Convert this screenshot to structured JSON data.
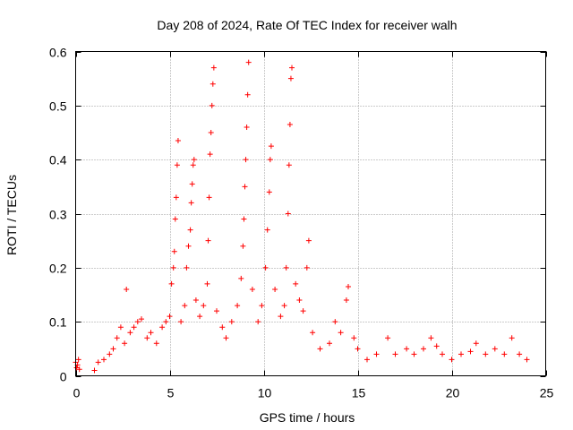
{
  "chart_data": {
    "type": "scatter",
    "title": "Day 208 of 2024, Rate Of TEC Index for receiver walh",
    "xlabel": "GPS time / hours",
    "ylabel": "ROTI / TECUs",
    "xlim": [
      0,
      25
    ],
    "ylim": [
      0,
      0.6
    ],
    "xticks": [
      0,
      5,
      10,
      15,
      20,
      25
    ],
    "yticks": [
      0,
      0.1,
      0.2,
      0.3,
      0.4,
      0.5,
      0.6
    ],
    "xtick_labels": [
      "0",
      "5",
      "10",
      "15",
      "20",
      "25"
    ],
    "ytick_labels": [
      "0",
      "0.1",
      "0.2",
      "0.3",
      "0.4",
      "0.5",
      "0.6"
    ],
    "grid": true,
    "marker": "+",
    "color": "#ff0000",
    "series": [
      {
        "name": "ROTI",
        "points": [
          [
            0.0,
            0.025
          ],
          [
            0.05,
            0.015
          ],
          [
            0.1,
            0.02
          ],
          [
            0.15,
            0.03
          ],
          [
            0.2,
            0.012
          ],
          [
            1.0,
            0.01
          ],
          [
            1.2,
            0.025
          ],
          [
            1.5,
            0.03
          ],
          [
            1.8,
            0.04
          ],
          [
            2.0,
            0.05
          ],
          [
            2.2,
            0.07
          ],
          [
            2.4,
            0.09
          ],
          [
            2.6,
            0.06
          ],
          [
            2.7,
            0.16
          ],
          [
            2.9,
            0.08
          ],
          [
            3.1,
            0.09
          ],
          [
            3.3,
            0.1
          ],
          [
            3.5,
            0.105
          ],
          [
            3.8,
            0.07
          ],
          [
            4.0,
            0.08
          ],
          [
            4.3,
            0.06
          ],
          [
            4.6,
            0.09
          ],
          [
            4.8,
            0.1
          ],
          [
            5.0,
            0.11
          ],
          [
            5.1,
            0.17
          ],
          [
            5.2,
            0.2
          ],
          [
            5.25,
            0.23
          ],
          [
            5.3,
            0.29
          ],
          [
            5.35,
            0.33
          ],
          [
            5.4,
            0.39
          ],
          [
            5.45,
            0.435
          ],
          [
            5.6,
            0.1
          ],
          [
            5.8,
            0.13
          ],
          [
            5.9,
            0.2
          ],
          [
            6.0,
            0.24
          ],
          [
            6.1,
            0.27
          ],
          [
            6.15,
            0.32
          ],
          [
            6.2,
            0.355
          ],
          [
            6.25,
            0.39
          ],
          [
            6.3,
            0.4
          ],
          [
            6.4,
            0.14
          ],
          [
            6.6,
            0.11
          ],
          [
            6.8,
            0.13
          ],
          [
            7.0,
            0.17
          ],
          [
            7.05,
            0.25
          ],
          [
            7.1,
            0.33
          ],
          [
            7.15,
            0.41
          ],
          [
            7.2,
            0.45
          ],
          [
            7.25,
            0.5
          ],
          [
            7.3,
            0.54
          ],
          [
            7.35,
            0.57
          ],
          [
            7.5,
            0.12
          ],
          [
            7.8,
            0.09
          ],
          [
            8.0,
            0.07
          ],
          [
            8.3,
            0.1
          ],
          [
            8.6,
            0.13
          ],
          [
            8.8,
            0.18
          ],
          [
            8.9,
            0.24
          ],
          [
            8.95,
            0.29
          ],
          [
            9.0,
            0.35
          ],
          [
            9.05,
            0.4
          ],
          [
            9.1,
            0.46
          ],
          [
            9.15,
            0.52
          ],
          [
            9.2,
            0.58
          ],
          [
            9.4,
            0.16
          ],
          [
            9.7,
            0.1
          ],
          [
            9.9,
            0.13
          ],
          [
            10.1,
            0.2
          ],
          [
            10.2,
            0.27
          ],
          [
            10.3,
            0.34
          ],
          [
            10.35,
            0.4
          ],
          [
            10.4,
            0.425
          ],
          [
            10.6,
            0.16
          ],
          [
            10.9,
            0.11
          ],
          [
            11.1,
            0.13
          ],
          [
            11.2,
            0.2
          ],
          [
            11.3,
            0.3
          ],
          [
            11.35,
            0.39
          ],
          [
            11.4,
            0.465
          ],
          [
            11.45,
            0.55
          ],
          [
            11.5,
            0.57
          ],
          [
            11.7,
            0.17
          ],
          [
            11.9,
            0.14
          ],
          [
            12.1,
            0.12
          ],
          [
            12.3,
            0.2
          ],
          [
            12.4,
            0.25
          ],
          [
            12.6,
            0.08
          ],
          [
            13.0,
            0.05
          ],
          [
            13.5,
            0.06
          ],
          [
            13.8,
            0.1
          ],
          [
            14.1,
            0.08
          ],
          [
            14.4,
            0.14
          ],
          [
            14.5,
            0.165
          ],
          [
            14.8,
            0.07
          ],
          [
            15.0,
            0.05
          ],
          [
            15.5,
            0.03
          ],
          [
            16.0,
            0.04
          ],
          [
            16.6,
            0.07
          ],
          [
            17.0,
            0.04
          ],
          [
            17.6,
            0.05
          ],
          [
            18.0,
            0.04
          ],
          [
            18.5,
            0.05
          ],
          [
            18.9,
            0.07
          ],
          [
            19.2,
            0.055
          ],
          [
            19.5,
            0.04
          ],
          [
            20.0,
            0.03
          ],
          [
            20.5,
            0.04
          ],
          [
            21.0,
            0.045
          ],
          [
            21.3,
            0.06
          ],
          [
            21.8,
            0.04
          ],
          [
            22.3,
            0.05
          ],
          [
            22.8,
            0.04
          ],
          [
            23.2,
            0.07
          ],
          [
            23.6,
            0.04
          ],
          [
            24.0,
            0.03
          ]
        ]
      }
    ]
  }
}
